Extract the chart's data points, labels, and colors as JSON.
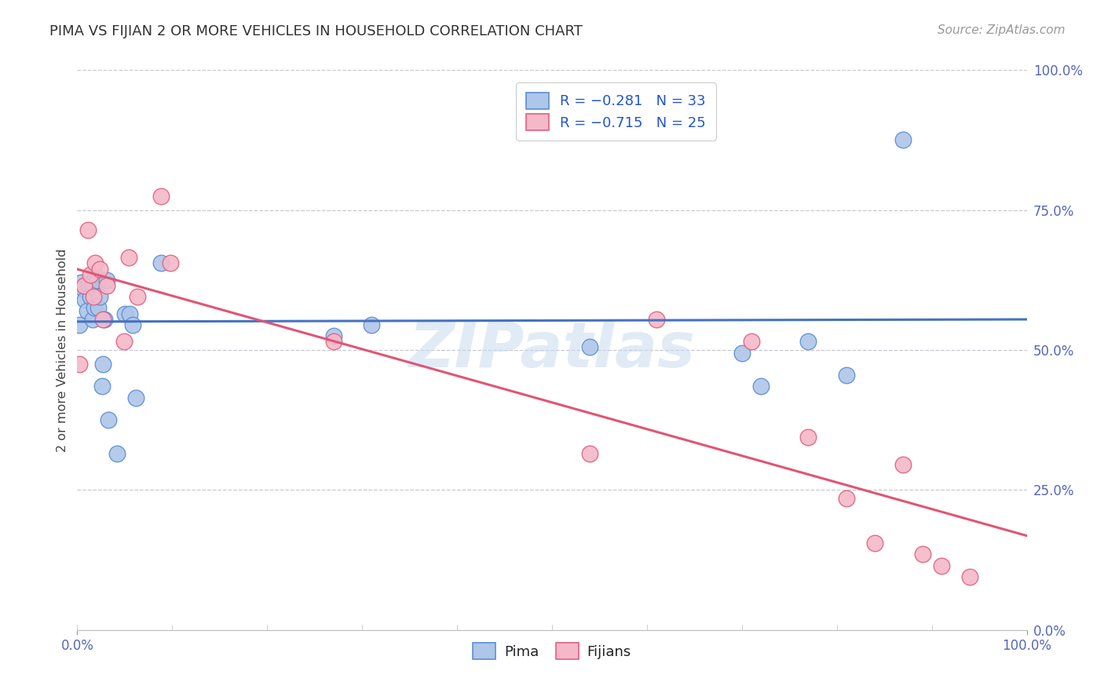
{
  "title": "PIMA VS FIJIAN 2 OR MORE VEHICLES IN HOUSEHOLD CORRELATION CHART",
  "source": "Source: ZipAtlas.com",
  "ylabel": "2 or more Vehicles in Household",
  "legend_pima": "Pima",
  "legend_fijians": "Fijians",
  "xlim": [
    0.0,
    1.0
  ],
  "ylim": [
    0.0,
    1.0
  ],
  "yticks": [
    0.0,
    0.25,
    0.5,
    0.75,
    1.0
  ],
  "yticklabels": [
    "0.0%",
    "25.0%",
    "50.0%",
    "75.0%",
    "100.0%"
  ],
  "background_color": "#ffffff",
  "grid_color": "#c8c8d0",
  "pima_fill": "#aec6e8",
  "pima_edge": "#5b8fd4",
  "fijian_fill": "#f5b8c8",
  "fijian_edge": "#e06080",
  "pima_line_color": "#4472c4",
  "fijian_line_color": "#e05575",
  "tick_color": "#5566bb",
  "watermark": "ZIPatlas",
  "pima_x": [
    0.002,
    0.004,
    0.006,
    0.008,
    0.01,
    0.012,
    0.014,
    0.016,
    0.016,
    0.018,
    0.019,
    0.021,
    0.022,
    0.024,
    0.026,
    0.027,
    0.029,
    0.031,
    0.033,
    0.042,
    0.05,
    0.055,
    0.058,
    0.062,
    0.088,
    0.27,
    0.31,
    0.54,
    0.7,
    0.72,
    0.77,
    0.81,
    0.87
  ],
  "pima_y": [
    0.545,
    0.62,
    0.61,
    0.59,
    0.57,
    0.615,
    0.595,
    0.555,
    0.615,
    0.575,
    0.635,
    0.625,
    0.575,
    0.595,
    0.435,
    0.475,
    0.555,
    0.625,
    0.375,
    0.315,
    0.565,
    0.565,
    0.545,
    0.415,
    0.655,
    0.525,
    0.545,
    0.505,
    0.495,
    0.435,
    0.515,
    0.455,
    0.875
  ],
  "fijian_x": [
    0.002,
    0.007,
    0.011,
    0.014,
    0.017,
    0.019,
    0.024,
    0.027,
    0.031,
    0.049,
    0.054,
    0.063,
    0.088,
    0.098,
    0.27,
    0.54,
    0.61,
    0.71,
    0.77,
    0.81,
    0.84,
    0.87,
    0.89,
    0.91,
    0.94
  ],
  "fijian_y": [
    0.475,
    0.615,
    0.715,
    0.635,
    0.595,
    0.655,
    0.645,
    0.555,
    0.615,
    0.515,
    0.665,
    0.595,
    0.775,
    0.655,
    0.515,
    0.315,
    0.555,
    0.515,
    0.345,
    0.235,
    0.155,
    0.295,
    0.135,
    0.115,
    0.095
  ]
}
